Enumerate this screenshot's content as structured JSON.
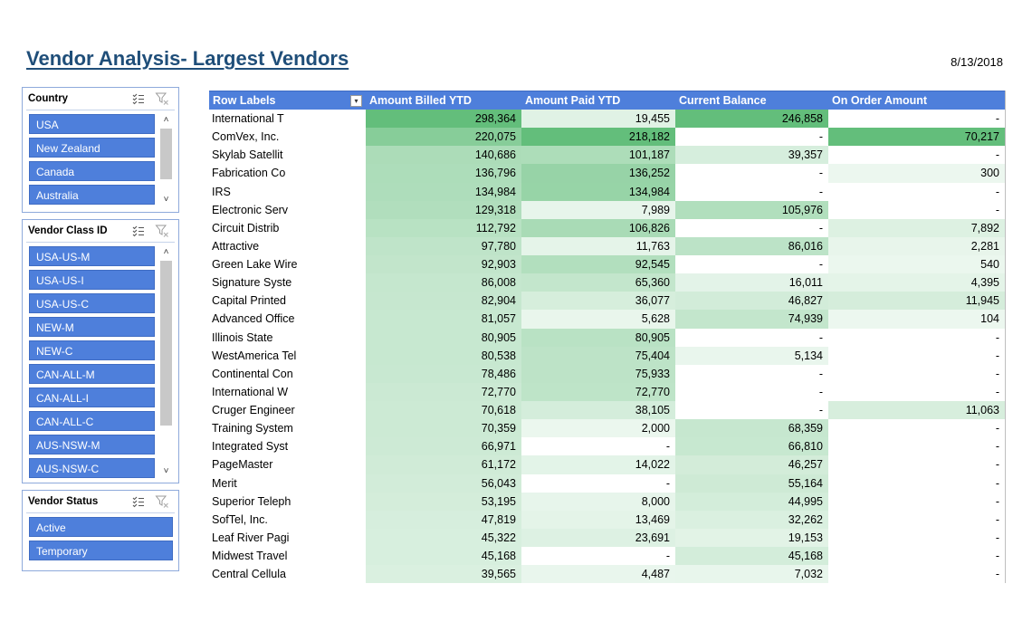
{
  "report": {
    "title": "Vendor Analysis- Largest Vendors",
    "date": "8/13/2018"
  },
  "slicers": {
    "country": {
      "title": "Country",
      "items": [
        "USA",
        "New Zealand",
        "Canada",
        "Australia"
      ]
    },
    "vendor_class": {
      "title": "Vendor Class ID",
      "items": [
        "USA-US-M",
        "USA-US-I",
        "USA-US-C",
        "NEW-M",
        "NEW-C",
        "CAN-ALL-M",
        "CAN-ALL-I",
        "CAN-ALL-C",
        "AUS-NSW-M",
        "AUS-NSW-C"
      ]
    },
    "vendor_status": {
      "title": "Vendor Status",
      "items": [
        "Active",
        "Temporary"
      ]
    }
  },
  "pivot": {
    "columns": [
      "Row Labels",
      "Amount Billed YTD",
      "Amount Paid YTD",
      "Current Balance",
      "On Order Amount"
    ],
    "rows": [
      [
        "International T",
        298364,
        19455,
        246858,
        null
      ],
      [
        "ComVex, Inc.",
        220075,
        218182,
        null,
        70217
      ],
      [
        "Skylab Satellit",
        140686,
        101187,
        39357,
        null
      ],
      [
        "Fabrication Co",
        136796,
        136252,
        null,
        300
      ],
      [
        "IRS",
        134984,
        134984,
        null,
        null
      ],
      [
        "Electronic Serv",
        129318,
        7989,
        105976,
        null
      ],
      [
        "Circuit Distrib",
        112792,
        106826,
        null,
        7892
      ],
      [
        "Attractive",
        97780,
        11763,
        86016,
        2281
      ],
      [
        "Green Lake Wire",
        92903,
        92545,
        null,
        540
      ],
      [
        "Signature Syste",
        86008,
        65360,
        16011,
        4395
      ],
      [
        "Capital Printed",
        82904,
        36077,
        46827,
        11945
      ],
      [
        "Advanced Office",
        81057,
        5628,
        74939,
        104
      ],
      [
        "Illinois State",
        80905,
        80905,
        null,
        null
      ],
      [
        "WestAmerica Tel",
        80538,
        75404,
        5134,
        null
      ],
      [
        "Continental Con",
        78486,
        75933,
        null,
        null
      ],
      [
        "International W",
        72770,
        72770,
        null,
        null
      ],
      [
        "Cruger Engineer",
        70618,
        38105,
        null,
        11063
      ],
      [
        "Training System",
        70359,
        2000,
        68359,
        null
      ],
      [
        "Integrated Syst",
        66971,
        null,
        66810,
        null
      ],
      [
        "PageMaster",
        61172,
        14022,
        46257,
        null
      ],
      [
        "Merit",
        56043,
        null,
        55164,
        null
      ],
      [
        "Superior Teleph",
        53195,
        8000,
        44995,
        null
      ],
      [
        "SofTel, Inc.",
        47819,
        13469,
        32262,
        null
      ],
      [
        "Leaf River Pagi",
        45322,
        23691,
        19153,
        null
      ],
      [
        "Midwest Travel",
        45168,
        null,
        45168,
        null
      ],
      [
        "Central Cellula",
        39565,
        4487,
        7032,
        null
      ]
    ],
    "empty_symbol": "-",
    "scale_colors": {
      "low": "#ffffff",
      "high": "#63be7b"
    }
  }
}
